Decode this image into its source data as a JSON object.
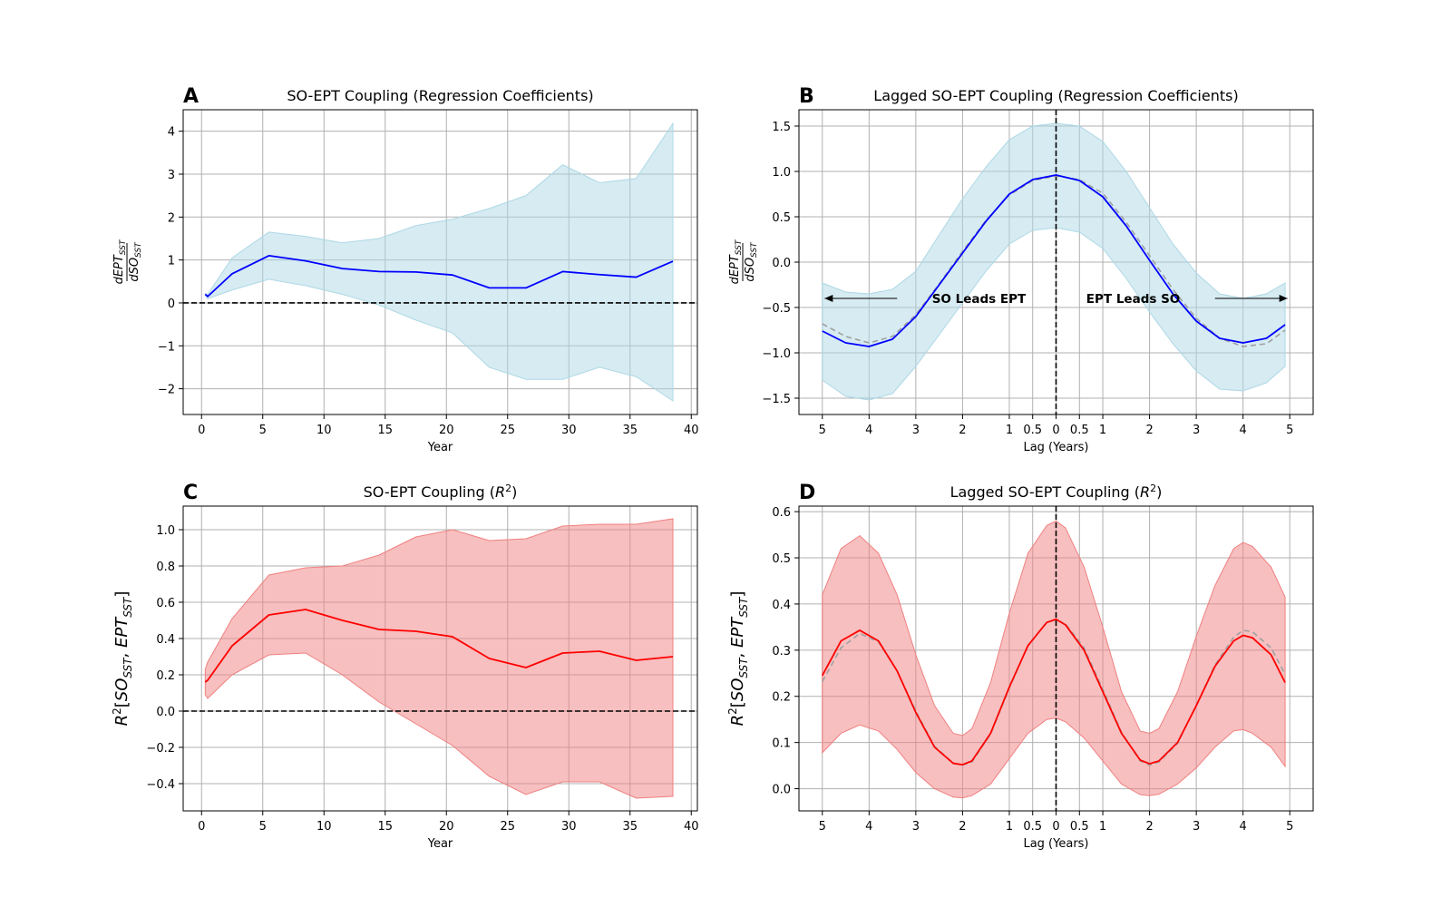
{
  "chart_data": [
    {
      "panel": "A",
      "type": "line",
      "title": "SO-EPT Coupling (Regression Coefficients)",
      "xlabel": "Year",
      "ylabel": "dEPT_SST / dSO_SST",
      "xlim": [
        -1.5,
        40.5
      ],
      "ylim": [
        -2.6,
        4.5
      ],
      "xticks": [
        0,
        5,
        10,
        15,
        20,
        25,
        30,
        35,
        40
      ],
      "yticks": [
        -2,
        -1,
        0,
        1,
        2,
        3,
        4
      ],
      "grid": true,
      "zero_line": 0,
      "x": [
        0.3,
        0.5,
        2.5,
        5.5,
        8.5,
        11.5,
        14.5,
        17.5,
        20.5,
        23.5,
        26.5,
        29.5,
        32.5,
        35.5,
        38.5
      ],
      "values": [
        0.2,
        0.15,
        0.68,
        1.1,
        0.98,
        0.8,
        0.73,
        0.72,
        0.65,
        0.35,
        0.35,
        0.73,
        0.66,
        0.6,
        0.97
      ],
      "upper": [
        0.22,
        0.2,
        1.05,
        1.65,
        1.55,
        1.4,
        1.5,
        1.8,
        1.95,
        2.2,
        2.5,
        3.22,
        2.8,
        2.9,
        4.18
      ],
      "lower": [
        0.18,
        0.1,
        0.3,
        0.55,
        0.4,
        0.2,
        -0.05,
        -0.4,
        -0.7,
        -1.5,
        -1.78,
        -1.78,
        -1.5,
        -1.72,
        -2.28
      ],
      "line_color": "#0000ff",
      "band_color": "#add8e6"
    },
    {
      "panel": "B",
      "type": "line",
      "title": "Lagged SO-EPT Coupling (Regression Coefficients)",
      "xlabel": "Lag (Years)",
      "ylabel": "dEPT_SST / dSO_SST",
      "xlim": [
        -5.5,
        5.5
      ],
      "ylim": [
        -1.68,
        1.68
      ],
      "xticks": [
        -5,
        -4,
        -3,
        -2,
        -1,
        -0.5,
        0,
        0.5,
        1,
        2,
        3,
        4,
        5
      ],
      "xtick_labels": [
        "5",
        "4",
        "3",
        "2",
        "1",
        "0.5",
        "0",
        "0.5",
        "1",
        "2",
        "3",
        "4",
        "5"
      ],
      "yticks": [
        -1.5,
        -1.0,
        -0.5,
        0.0,
        0.5,
        1.0,
        1.5
      ],
      "ytick_labels": [
        "−1.5",
        "−1.0",
        "−0.5",
        "0.0",
        "0.5",
        "1.0",
        "1.5"
      ],
      "grid": true,
      "vline": 0,
      "x": [
        -5.0,
        -4.5,
        -4.0,
        -3.5,
        -3.0,
        -2.5,
        -2.0,
        -1.5,
        -1.0,
        -0.5,
        0.0,
        0.5,
        1.0,
        1.5,
        2.0,
        2.5,
        3.0,
        3.5,
        4.0,
        4.5,
        4.9
      ],
      "values": [
        -0.76,
        -0.89,
        -0.93,
        -0.85,
        -0.6,
        -0.25,
        0.1,
        0.45,
        0.75,
        0.91,
        0.96,
        0.9,
        0.72,
        0.4,
        0.02,
        -0.35,
        -0.65,
        -0.84,
        -0.89,
        -0.84,
        -0.69
      ],
      "fit": [
        -0.68,
        -0.82,
        -0.89,
        -0.82,
        -0.58,
        -0.24,
        0.12,
        0.46,
        0.74,
        0.9,
        0.95,
        0.91,
        0.76,
        0.44,
        0.07,
        -0.3,
        -0.62,
        -0.84,
        -0.93,
        -0.9,
        -0.75
      ],
      "upper": [
        -0.23,
        -0.33,
        -0.35,
        -0.3,
        -0.1,
        0.3,
        0.7,
        1.05,
        1.35,
        1.5,
        1.53,
        1.5,
        1.33,
        1.0,
        0.6,
        0.2,
        -0.12,
        -0.35,
        -0.4,
        -0.35,
        -0.23
      ],
      "lower": [
        -1.3,
        -1.48,
        -1.52,
        -1.45,
        -1.15,
        -0.8,
        -0.45,
        -0.1,
        0.2,
        0.35,
        0.38,
        0.33,
        0.15,
        -0.18,
        -0.55,
        -0.9,
        -1.2,
        -1.4,
        -1.42,
        -1.33,
        -1.15
      ],
      "line_color": "#0000ff",
      "fit_color": "#a0a0a0",
      "band_color": "#add8e6",
      "annotations": [
        {
          "text": "SO Leads EPT",
          "x": -1.65,
          "y": -0.4,
          "arrow_from": -3.4,
          "arrow_to": -4.95
        },
        {
          "text": "EPT Leads SO",
          "x": 1.65,
          "y": -0.4,
          "arrow_from": 3.4,
          "arrow_to": 4.95
        }
      ]
    },
    {
      "panel": "C",
      "type": "line",
      "title": "SO-EPT Coupling (R²)",
      "xlabel": "Year",
      "ylabel": "R²[SO_SST, EPT_SST]",
      "xlim": [
        -1.5,
        40.5
      ],
      "ylim": [
        -0.55,
        1.13
      ],
      "xticks": [
        0,
        5,
        10,
        15,
        20,
        25,
        30,
        35,
        40
      ],
      "yticks": [
        -0.4,
        -0.2,
        0.0,
        0.2,
        0.4,
        0.6,
        0.8,
        1.0
      ],
      "ytick_labels": [
        "−0.4",
        "−0.2",
        "0.0",
        "0.2",
        "0.4",
        "0.6",
        "0.8",
        "1.0"
      ],
      "grid": true,
      "zero_line": 0,
      "x": [
        0.3,
        0.5,
        2.5,
        5.5,
        8.5,
        11.5,
        14.5,
        17.5,
        20.5,
        23.5,
        26.5,
        29.5,
        32.5,
        35.5,
        38.5
      ],
      "values": [
        0.16,
        0.17,
        0.36,
        0.53,
        0.56,
        0.5,
        0.45,
        0.44,
        0.41,
        0.29,
        0.24,
        0.32,
        0.33,
        0.28,
        0.3
      ],
      "upper": [
        0.23,
        0.27,
        0.51,
        0.75,
        0.79,
        0.8,
        0.86,
        0.96,
        1.0,
        0.94,
        0.95,
        1.02,
        1.03,
        1.03,
        1.06
      ],
      "lower": [
        0.09,
        0.07,
        0.2,
        0.31,
        0.32,
        0.2,
        0.05,
        -0.07,
        -0.19,
        -0.36,
        -0.46,
        -0.39,
        -0.39,
        -0.48,
        -0.47
      ],
      "line_color": "#ff0000",
      "band_color": "#f08080"
    },
    {
      "panel": "D",
      "type": "line",
      "title": "Lagged SO-EPT Coupling (R²)",
      "xlabel": "Lag (Years)",
      "ylabel": "R²[SO_SST, EPT_SST]",
      "xlim": [
        -5.5,
        5.5
      ],
      "ylim": [
        -0.048,
        0.612
      ],
      "xticks": [
        -5,
        -4,
        -3,
        -2,
        -1,
        -0.5,
        0,
        0.5,
        1,
        2,
        3,
        4,
        5
      ],
      "xtick_labels": [
        "5",
        "4",
        "3",
        "2",
        "1",
        "0.5",
        "0",
        "0.5",
        "1",
        "2",
        "3",
        "4",
        "5"
      ],
      "yticks": [
        0.0,
        0.1,
        0.2,
        0.3,
        0.4,
        0.5,
        0.6
      ],
      "ytick_labels": [
        "0.0",
        "0.1",
        "0.2",
        "0.3",
        "0.4",
        "0.5",
        "0.6"
      ],
      "grid": true,
      "vline": 0,
      "x": [
        -5.0,
        -4.6,
        -4.2,
        -3.8,
        -3.4,
        -3.0,
        -2.6,
        -2.2,
        -2.0,
        -1.8,
        -1.4,
        -1.0,
        -0.6,
        -0.2,
        0.0,
        0.2,
        0.6,
        1.0,
        1.4,
        1.8,
        2.0,
        2.2,
        2.6,
        3.0,
        3.4,
        3.8,
        4.0,
        4.2,
        4.6,
        4.9
      ],
      "values": [
        0.245,
        0.32,
        0.343,
        0.32,
        0.255,
        0.165,
        0.09,
        0.055,
        0.052,
        0.06,
        0.12,
        0.22,
        0.31,
        0.36,
        0.367,
        0.355,
        0.3,
        0.21,
        0.12,
        0.062,
        0.054,
        0.06,
        0.1,
        0.18,
        0.265,
        0.32,
        0.332,
        0.327,
        0.29,
        0.23
      ],
      "fit": [
        0.232,
        0.305,
        0.336,
        0.318,
        0.255,
        0.168,
        0.092,
        0.055,
        0.051,
        0.058,
        0.118,
        0.218,
        0.31,
        0.36,
        0.366,
        0.357,
        0.305,
        0.215,
        0.122,
        0.06,
        0.051,
        0.058,
        0.098,
        0.18,
        0.268,
        0.328,
        0.343,
        0.34,
        0.305,
        0.248
      ],
      "upper": [
        0.42,
        0.52,
        0.548,
        0.51,
        0.42,
        0.29,
        0.18,
        0.12,
        0.115,
        0.13,
        0.23,
        0.38,
        0.51,
        0.57,
        0.58,
        0.565,
        0.48,
        0.35,
        0.21,
        0.125,
        0.12,
        0.13,
        0.21,
        0.33,
        0.44,
        0.52,
        0.533,
        0.525,
        0.48,
        0.415
      ],
      "lower": [
        0.078,
        0.12,
        0.138,
        0.125,
        0.085,
        0.035,
        0.0,
        -0.018,
        -0.02,
        -0.015,
        0.01,
        0.065,
        0.12,
        0.15,
        0.153,
        0.145,
        0.11,
        0.06,
        0.01,
        -0.013,
        -0.015,
        -0.012,
        0.01,
        0.045,
        0.09,
        0.125,
        0.128,
        0.12,
        0.09,
        0.048
      ],
      "line_color": "#ff0000",
      "fit_color": "#a0a0a0",
      "band_color": "#f08080"
    }
  ]
}
